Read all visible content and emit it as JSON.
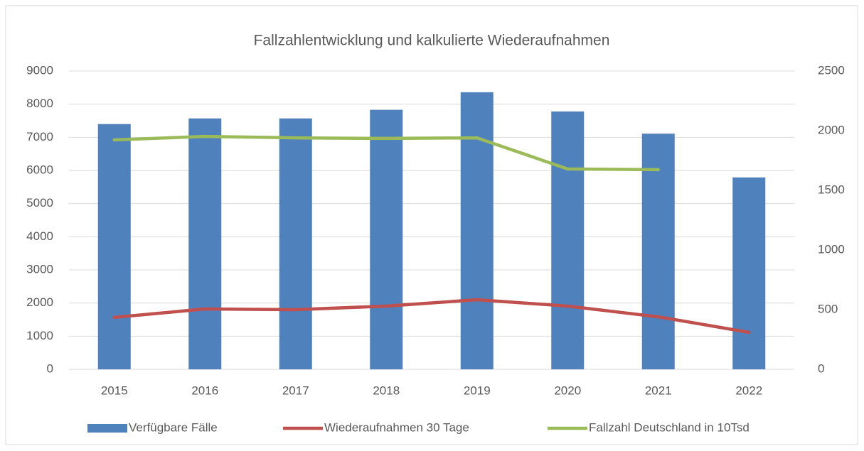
{
  "chart_data": {
    "type": "bar",
    "title": "Fallzahlentwicklung und kalkulierte Wiederaufnahmen",
    "categories": [
      "2015",
      "2016",
      "2017",
      "2018",
      "2019",
      "2020",
      "2021",
      "2022"
    ],
    "series": [
      {
        "name": "Verfügbare Fälle",
        "type": "bar",
        "color": "#4f81bd",
        "values": [
          7400,
          7570,
          7570,
          7830,
          8360,
          7780,
          7110,
          5790
        ]
      },
      {
        "name": "Wiederaufnahmen 30 Tage",
        "type": "line",
        "axis": "y2",
        "color": "#c0504d",
        "values": [
          435,
          506,
          500,
          530,
          583,
          530,
          440,
          310
        ]
      },
      {
        "name": "Fallzahl Deutschland in 10Tsd",
        "type": "line",
        "axis": "y2",
        "color": "#9bbb59",
        "values": [
          1923,
          1952,
          1940,
          1935,
          1940,
          1679,
          1673,
          null
        ]
      }
    ],
    "ylim": [
      0,
      9000
    ],
    "yticks": [
      0,
      1000,
      2000,
      3000,
      4000,
      5000,
      6000,
      7000,
      8000,
      9000
    ],
    "y2lim": [
      0,
      2500
    ],
    "y2ticks": [
      0,
      500,
      1000,
      1500,
      2000,
      2500
    ],
    "grid": true,
    "legend": "bottom"
  }
}
